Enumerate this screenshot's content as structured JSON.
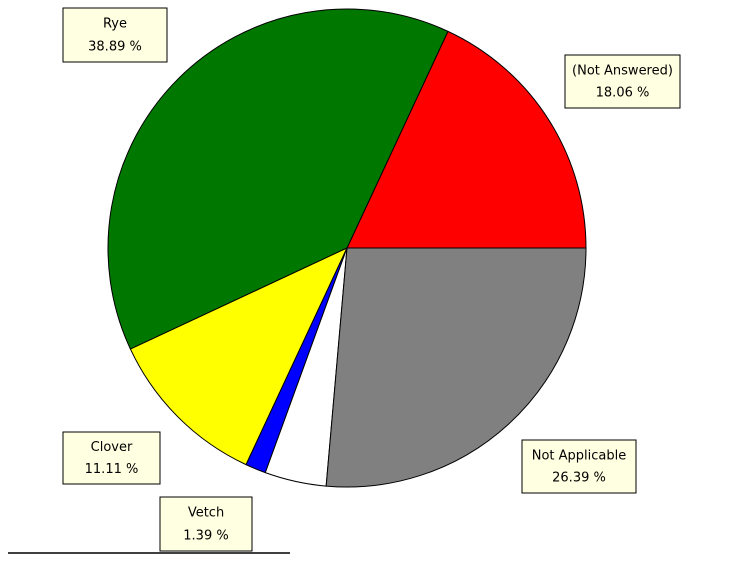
{
  "chart_data": {
    "type": "pie",
    "categories": [
      "(Not Answered)",
      "Rye",
      "Clover",
      "Vetch",
      null,
      "Not Applicable"
    ],
    "values": [
      18.06,
      38.89,
      11.11,
      1.39,
      4.16,
      26.39
    ],
    "value_labels": [
      "18.06 %",
      "38.89 %",
      "11.11 %",
      "1.39 %",
      null,
      "26.39 %"
    ],
    "colors": [
      "#ff0000",
      "#007800",
      "#ffff00",
      "#0000ff",
      "#ffffff",
      "#808080"
    ]
  }
}
